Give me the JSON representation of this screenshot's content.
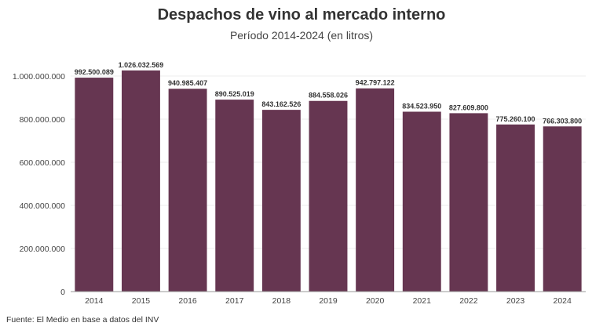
{
  "header": {
    "title": "Despachos de vino al mercado interno",
    "subtitle": "Período 2014-2024 (en litros)"
  },
  "footer": {
    "source": "Fuente: El Medio en base a datos del INV"
  },
  "colors": {
    "bar": "#663651",
    "grid": "#eeeeee",
    "axis": "#999999"
  },
  "chart_data": {
    "type": "bar",
    "title": "Despachos de vino al mercado interno",
    "subtitle": "Período 2014-2024 (en litros)",
    "xlabel": "",
    "ylabel": "",
    "categories": [
      "2014",
      "2015",
      "2016",
      "2017",
      "2018",
      "2019",
      "2020",
      "2021",
      "2022",
      "2023",
      "2024"
    ],
    "values": [
      992500089,
      1026032569,
      940985407,
      890525019,
      843162526,
      884558026,
      942797122,
      834523950,
      827609800,
      775260100,
      766303800
    ],
    "value_labels": [
      "992.500.089",
      "1.026.032.569",
      "940.985.407",
      "890.525.019",
      "843.162.526",
      "884.558.026",
      "942.797.122",
      "834.523.950",
      "827.609.800",
      "775.260.100",
      "766.303.800"
    ],
    "yticks": [
      0,
      200000000,
      400000000,
      600000000,
      800000000,
      1000000000
    ],
    "ytick_labels": [
      "0",
      "200.000.000",
      "400.000.000",
      "600.000.000",
      "800.000.000",
      "1.000.000.000"
    ],
    "ylim": [
      0,
      1100000000
    ],
    "grid": true,
    "legend": "none"
  }
}
